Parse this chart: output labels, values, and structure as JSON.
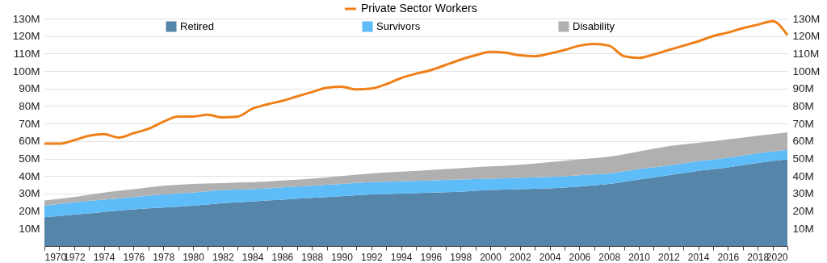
{
  "chart_data": {
    "type": "area",
    "stacked": true,
    "legend": "top",
    "grid": "y",
    "xlim": [
      1970,
      2020
    ],
    "xticks": [
      1970,
      {
        "value": 1971,
        "label": null
      },
      1972,
      {
        "value": 1973,
        "label": null
      },
      1974,
      {
        "value": 1975,
        "label": null
      },
      1976,
      {
        "value": 1977,
        "label": null
      },
      1978,
      {
        "value": 1979,
        "label": null
      },
      1980,
      {
        "value": 1981,
        "label": null
      },
      1982,
      {
        "value": 1983,
        "label": null
      },
      1984,
      {
        "value": 1985,
        "label": null
      },
      1986,
      {
        "value": 1987,
        "label": null
      },
      1988,
      {
        "value": 1989,
        "label": null
      },
      1990,
      {
        "value": 1991,
        "label": null
      },
      1992,
      {
        "value": 1993,
        "label": null
      },
      1994,
      {
        "value": 1995,
        "label": null
      },
      1996,
      {
        "value": 1997,
        "label": null
      },
      1998,
      {
        "value": 1999,
        "label": null
      },
      2000,
      {
        "value": 2001,
        "label": null
      },
      2002,
      {
        "value": 2003,
        "label": null
      },
      2004,
      {
        "value": 2005,
        "label": null
      },
      2006,
      {
        "value": 2007,
        "label": null
      },
      2008,
      {
        "value": 2009,
        "label": null
      },
      2010,
      {
        "value": 2011,
        "label": null
      },
      2012,
      {
        "value": 2013,
        "label": null
      },
      2014,
      {
        "value": 2015,
        "label": null
      },
      2016,
      {
        "value": 2017,
        "label": null
      },
      2018,
      {
        "value": 2019,
        "label": null
      },
      2020
    ],
    "ylim": [
      0,
      130
    ],
    "yticks": [
      {
        "value": 10,
        "label": "10M"
      },
      {
        "value": 20,
        "label": "20M"
      },
      {
        "value": 30,
        "label": "30M"
      },
      {
        "value": 40,
        "label": "40M"
      },
      {
        "value": 50,
        "label": "50M"
      },
      {
        "value": 60,
        "label": "60M"
      },
      {
        "value": 70,
        "label": "70M"
      },
      {
        "value": 80,
        "label": "80M"
      },
      {
        "value": 90,
        "label": "90M"
      },
      {
        "value": 100,
        "label": "100M"
      },
      {
        "value": 110,
        "label": "110M"
      },
      {
        "value": 120,
        "label": "120M"
      },
      {
        "value": 130,
        "label": "130M"
      }
    ],
    "y2lim": [
      0,
      130
    ],
    "y2ticks": [
      {
        "value": 10,
        "label": "10M"
      },
      {
        "value": 20,
        "label": "20M"
      },
      {
        "value": 30,
        "label": "30M"
      },
      {
        "value": 40,
        "label": "40M"
      },
      {
        "value": 50,
        "label": "50M"
      },
      {
        "value": 60,
        "label": "60M"
      },
      {
        "value": 70,
        "label": "70M"
      },
      {
        "value": 80,
        "label": "80M"
      },
      {
        "value": 90,
        "label": "90M"
      },
      {
        "value": 100,
        "label": "100M"
      },
      {
        "value": 110,
        "label": "110M"
      },
      {
        "value": 120,
        "label": "120M"
      },
      {
        "value": 130,
        "label": "130M"
      }
    ],
    "series": [
      {
        "name": "Retired",
        "color": "#5585a8",
        "x": [
          1970,
          1972,
          1974,
          1976,
          1978,
          1980,
          1982,
          1984,
          1986,
          1988,
          1990,
          1992,
          1994,
          1996,
          1998,
          2000,
          2002,
          2004,
          2006,
          2008,
          2010,
          2012,
          2014,
          2016,
          2018,
          2020
        ],
        "values": [
          16.5,
          18,
          19.5,
          21,
          22,
          23,
          24.5,
          25.5,
          26.5,
          27.5,
          28.5,
          29.5,
          30,
          30.5,
          31,
          32,
          32.5,
          33,
          34,
          35.5,
          38,
          40.5,
          43,
          45,
          47.5,
          49.5
        ]
      },
      {
        "name": "Survivors",
        "color": "#5ebcf9",
        "x": [
          1970,
          1972,
          1974,
          1976,
          1978,
          1980,
          1982,
          1984,
          1986,
          1988,
          1990,
          1992,
          1994,
          1996,
          1998,
          2000,
          2002,
          2004,
          2006,
          2008,
          2010,
          2012,
          2014,
          2016,
          2018,
          2020
        ],
        "values": [
          6.5,
          7,
          7,
          7,
          7.5,
          7.5,
          7.5,
          7,
          7,
          7,
          7,
          7,
          7,
          7,
          7,
          6.5,
          6.5,
          6.5,
          6.5,
          6,
          6,
          5.5,
          5.5,
          5.5,
          5.5,
          5.5
        ]
      },
      {
        "name": "Disability",
        "color": "#b0b0b0",
        "x": [
          1970,
          1972,
          1974,
          1976,
          1978,
          1980,
          1982,
          1984,
          1986,
          1988,
          1990,
          1992,
          1994,
          1996,
          1998,
          2000,
          2002,
          2004,
          2006,
          2008,
          2010,
          2012,
          2014,
          2016,
          2018,
          2020
        ],
        "values": [
          3,
          3,
          4,
          4.5,
          5,
          5,
          4,
          4,
          4,
          4,
          4.5,
          5,
          5.5,
          6,
          6.5,
          7,
          7.5,
          8.5,
          9,
          9.5,
          10,
          11,
          10.5,
          10.5,
          10,
          10
        ]
      },
      {
        "name": "Private Sector Workers",
        "type": "line",
        "axis": "y2",
        "color": "#f07f17",
        "x": [
          1970,
          1971,
          1972,
          1973,
          1974,
          1975,
          1976,
          1977,
          1978,
          1979,
          1980,
          1981,
          1982,
          1983,
          1984,
          1985,
          1986,
          1987,
          1988,
          1989,
          1990,
          1991,
          1992,
          1993,
          1994,
          1995,
          1996,
          1997,
          1998,
          1999,
          2000,
          2001,
          2002,
          2003,
          2004,
          2005,
          2006,
          2007,
          2008,
          2009,
          2010,
          2011,
          2012,
          2013,
          2014,
          2015,
          2016,
          2017,
          2018,
          2019,
          2020
        ],
        "values": [
          58.5,
          58.5,
          60.5,
          63,
          64,
          62,
          64.5,
          67,
          71,
          74,
          74,
          75,
          73.5,
          74,
          78.5,
          81,
          83,
          85.5,
          88,
          90.5,
          91,
          89.5,
          90,
          92.5,
          96,
          98.5,
          100.5,
          103.5,
          106.5,
          109,
          111,
          110.5,
          109,
          108.5,
          110,
          112,
          114.5,
          115.5,
          114.5,
          108.5,
          107.5,
          109.5,
          112,
          114.5,
          117,
          120,
          122,
          124.5,
          126.5,
          128.5,
          120.5
        ]
      }
    ]
  }
}
